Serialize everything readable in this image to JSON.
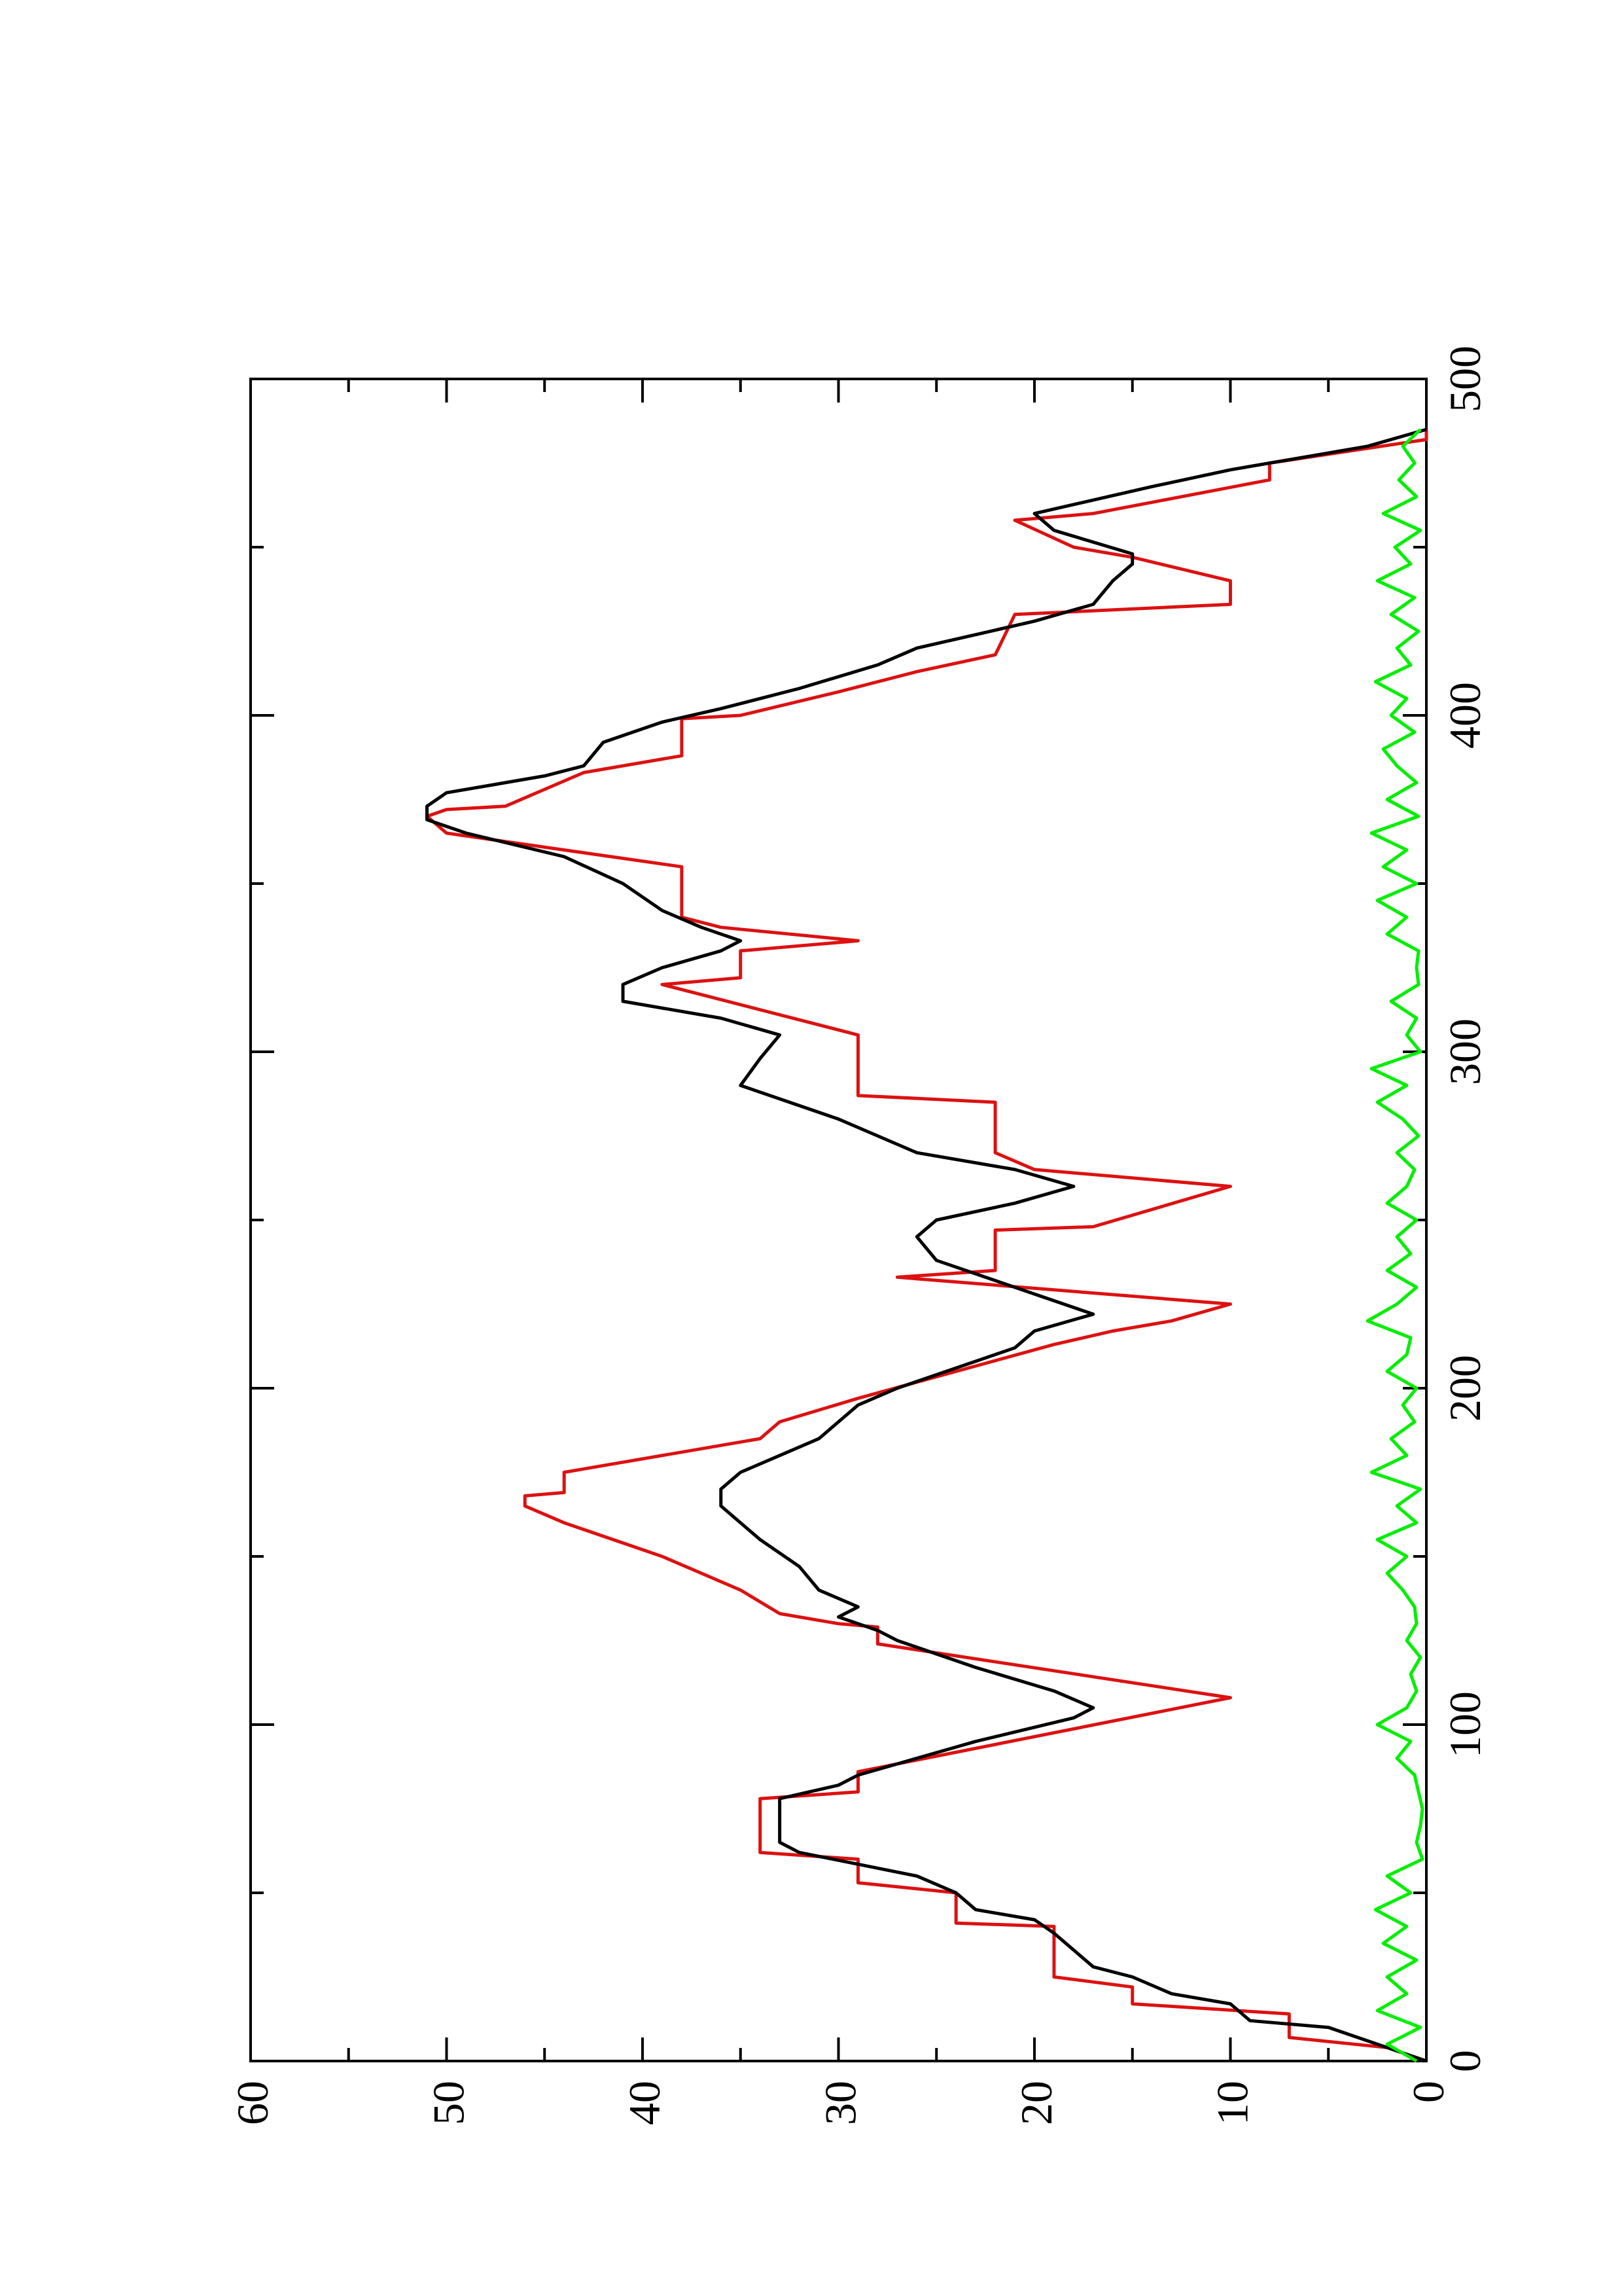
{
  "chart_data": {
    "type": "line",
    "xlim": [
      0,
      500
    ],
    "xticks": [
      0,
      100,
      200,
      300,
      400,
      500
    ],
    "ylim": [
      0,
      60
    ],
    "yticks": [
      0,
      10,
      20,
      30,
      40,
      50,
      60
    ],
    "series": [
      {
        "color": "#dd1111",
        "x": [
          0,
          4,
          7,
          14,
          17,
          22,
          25,
          40,
          41,
          50,
          53,
          60,
          62,
          64,
          78,
          80,
          86,
          108,
          124,
          129,
          130,
          133,
          140,
          150,
          160,
          165,
          168,
          169,
          175,
          185,
          190,
          197,
          213,
          217,
          220,
          225,
          233,
          235,
          247,
          248,
          260,
          265,
          270,
          285,
          287,
          305,
          320,
          322,
          330,
          333,
          337,
          340,
          355,
          360,
          365,
          370,
          372,
          373,
          383,
          388,
          399,
          400,
          407,
          413,
          418,
          430,
          433,
          440,
          447,
          450,
          458,
          460,
          470,
          475,
          482,
          485
        ],
        "values": [
          0,
          2,
          7,
          7,
          15,
          15,
          19,
          19,
          24,
          24,
          29,
          29,
          34,
          34,
          34,
          29,
          29,
          10,
          28,
          28,
          30,
          33,
          35,
          39,
          44,
          46,
          46,
          44,
          44,
          34,
          33,
          29,
          19,
          16,
          13,
          10,
          27,
          22,
          22,
          17,
          10,
          20,
          22,
          22,
          29,
          29,
          39,
          35,
          35,
          29,
          36,
          38,
          38,
          44,
          50,
          51,
          50,
          47,
          43,
          38,
          38,
          35,
          30,
          26,
          22,
          21,
          10,
          10,
          15,
          18,
          21,
          17,
          8,
          8,
          0,
          0
        ]
      },
      {
        "color": "#000000",
        "x": [
          0,
          10,
          12,
          17,
          20,
          25,
          28,
          33,
          38,
          42,
          45,
          50,
          55,
          62,
          65,
          78,
          82,
          85,
          90,
          95,
          102,
          105,
          110,
          117,
          125,
          128,
          132,
          135,
          140,
          147,
          155,
          160,
          165,
          170,
          175,
          180,
          185,
          190,
          195,
          200,
          208,
          212,
          217,
          222,
          228,
          232,
          238,
          245,
          250,
          255,
          260,
          265,
          270,
          275,
          280,
          290,
          298,
          305,
          310,
          315,
          320,
          325,
          330,
          333,
          337,
          342,
          350,
          358,
          365,
          369,
          373,
          377,
          382,
          385,
          392,
          398,
          402,
          408,
          415,
          420,
          428,
          433,
          440,
          445,
          448,
          455,
          460,
          468,
          473,
          480,
          485
        ],
        "values": [
          0,
          5,
          9,
          10,
          13,
          15,
          17,
          18,
          19,
          20,
          23,
          24,
          26,
          32,
          33,
          33,
          30,
          29,
          26,
          23,
          18,
          17,
          19,
          23,
          27,
          28,
          30,
          29,
          31,
          32,
          34,
          35,
          36,
          36,
          35,
          33,
          31,
          30,
          29,
          27,
          23,
          21,
          20,
          17,
          20,
          22,
          25,
          26,
          25,
          21,
          18,
          21,
          26,
          28,
          30,
          35,
          34,
          33,
          36,
          41,
          41,
          39,
          36,
          35,
          37,
          39,
          41,
          44,
          49,
          51,
          51,
          50,
          45,
          43,
          42,
          39,
          36,
          32,
          28,
          26,
          20,
          17,
          16,
          15,
          15,
          19,
          20,
          14,
          10,
          3,
          0
        ]
      },
      {
        "color": "#00ee00",
        "x": [
          0,
          5,
          10,
          15,
          20,
          25,
          30,
          35,
          40,
          45,
          50,
          55,
          60,
          65,
          70,
          75,
          80,
          85,
          90,
          95,
          100,
          105,
          110,
          115,
          120,
          125,
          130,
          135,
          140,
          145,
          150,
          155,
          160,
          165,
          170,
          175,
          180,
          185,
          190,
          195,
          200,
          205,
          210,
          215,
          220,
          225,
          230,
          235,
          240,
          245,
          250,
          255,
          260,
          265,
          270,
          275,
          280,
          285,
          290,
          295,
          300,
          305,
          310,
          315,
          320,
          325,
          330,
          335,
          340,
          345,
          350,
          355,
          360,
          365,
          370,
          375,
          380,
          385,
          390,
          395,
          400,
          405,
          410,
          415,
          420,
          425,
          430,
          435,
          440,
          445,
          450,
          455,
          460,
          465,
          470,
          475,
          480,
          485
        ],
        "values": [
          0.5,
          2,
          0.3,
          2.5,
          1,
          2,
          0.5,
          2.2,
          1,
          2.6,
          0.8,
          2,
          0.2,
          0.5,
          0.3,
          0.2,
          0.4,
          0.6,
          1.5,
          0.8,
          2.5,
          1,
          0.5,
          0.8,
          0.3,
          1,
          0.5,
          0.6,
          1.2,
          2,
          1,
          2.5,
          0.5,
          1.5,
          0.3,
          2.8,
          1,
          1.8,
          0.6,
          1.2,
          0.5,
          2,
          1,
          0.8,
          3,
          1.5,
          0.5,
          2,
          0.8,
          1.5,
          0.5,
          2,
          1,
          0.6,
          1.5,
          0.4,
          1.2,
          2.5,
          1,
          2.8,
          0.3,
          1,
          0.5,
          1.8,
          0.4,
          0.5,
          0.4,
          2,
          1,
          2.5,
          0.5,
          2.2,
          1,
          2.8,
          0.4,
          2,
          0.5,
          1.5,
          2.2,
          0.6,
          1.8,
          1,
          2.6,
          0.8,
          1.5,
          0.4,
          1.8,
          0.6,
          2.5,
          0.8,
          1.6,
          0.3,
          2.2,
          0.5,
          1.4,
          0.6,
          1.2,
          0.3
        ]
      }
    ]
  }
}
